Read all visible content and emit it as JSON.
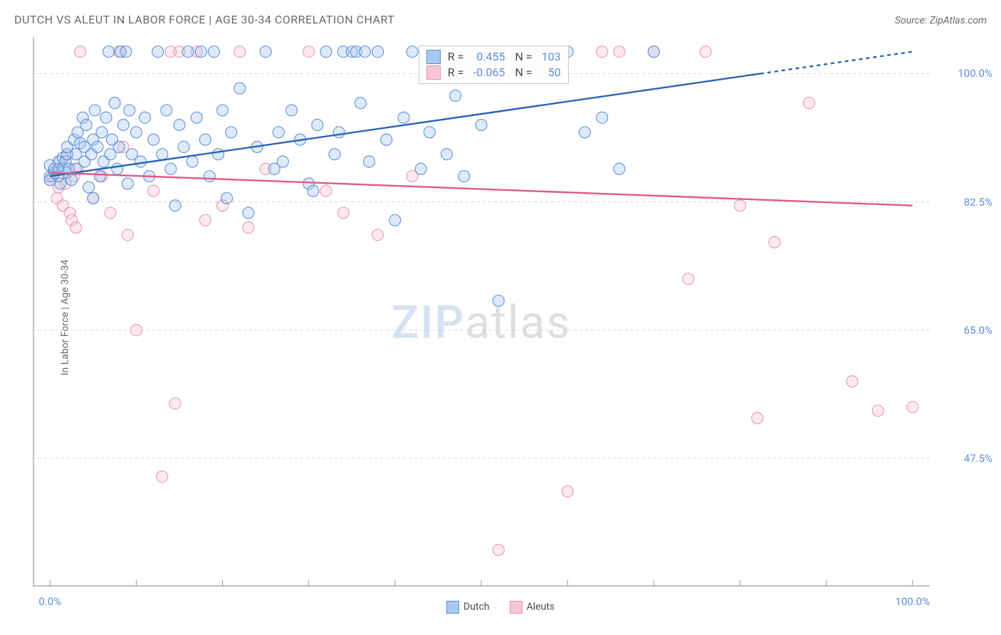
{
  "title": "DUTCH VS ALEUT IN LABOR FORCE | AGE 30-34 CORRELATION CHART",
  "source_label": "Source: ZipAtlas.com",
  "ylabel": "In Labor Force | Age 30-34",
  "watermark": {
    "part1": "ZIP",
    "part2": "atlas"
  },
  "chart": {
    "type": "scatter",
    "xlim": [
      -2,
      102
    ],
    "ylim": [
      30,
      105
    ],
    "xticks": [
      0,
      10,
      20,
      30,
      40,
      50,
      60,
      70,
      80,
      90,
      100
    ],
    "xtick_labels": {
      "0": "0.0%",
      "100": "100.0%"
    },
    "yticks": [
      47.5,
      65.0,
      82.5,
      100.0
    ],
    "ytick_labels": [
      "47.5%",
      "65.0%",
      "82.5%",
      "100.0%"
    ],
    "grid_color": "#d8d8d8",
    "axis_color": "#9a9a9a",
    "background_color": "#ffffff",
    "tick_label_color": "#5b8fd6",
    "marker_radius": 8,
    "marker_opacity": 0.38,
    "line_width": 2.4
  },
  "series": [
    {
      "name": "Dutch",
      "color_fill": "#a9c9ef",
      "color_stroke": "#5b8fd6",
      "line_color": "#2a63b8",
      "stats": {
        "R": "0.455",
        "N": "103"
      },
      "trend": {
        "x1": 0,
        "y1": 86.0,
        "x2": 100,
        "y2": 103.0
      },
      "points": [
        [
          0,
          86
        ],
        [
          0,
          87.5
        ],
        [
          0,
          85.5
        ],
        [
          0.5,
          86.5
        ],
        [
          0.5,
          87
        ],
        [
          1,
          86
        ],
        [
          1,
          87
        ],
        [
          1,
          88
        ],
        [
          1.2,
          85
        ],
        [
          1.5,
          88.5
        ],
        [
          1.5,
          87
        ],
        [
          1.8,
          88
        ],
        [
          2,
          86.5
        ],
        [
          2,
          89
        ],
        [
          2,
          90
        ],
        [
          2.2,
          87
        ],
        [
          2.5,
          85.5
        ],
        [
          2.8,
          91
        ],
        [
          3,
          89
        ],
        [
          3,
          87
        ],
        [
          3.2,
          92
        ],
        [
          3.5,
          90.5
        ],
        [
          3.8,
          94
        ],
        [
          4,
          88
        ],
        [
          4,
          90
        ],
        [
          4.2,
          93
        ],
        [
          4.5,
          84.5
        ],
        [
          4.8,
          89
        ],
        [
          5,
          91
        ],
        [
          5,
          83
        ],
        [
          5.2,
          95
        ],
        [
          5.5,
          90
        ],
        [
          5.8,
          86
        ],
        [
          6,
          92
        ],
        [
          6.2,
          88
        ],
        [
          6.5,
          94
        ],
        [
          6.8,
          103
        ],
        [
          7,
          89
        ],
        [
          7.2,
          91
        ],
        [
          7.5,
          96
        ],
        [
          7.8,
          87
        ],
        [
          8,
          90
        ],
        [
          8.2,
          103
        ],
        [
          8.5,
          93
        ],
        [
          8.8,
          103
        ],
        [
          9,
          85
        ],
        [
          9.2,
          95
        ],
        [
          9.5,
          89
        ],
        [
          10,
          92
        ],
        [
          10.5,
          88
        ],
        [
          11,
          94
        ],
        [
          11.5,
          86
        ],
        [
          12,
          91
        ],
        [
          12.5,
          103
        ],
        [
          13,
          89
        ],
        [
          13.5,
          95
        ],
        [
          14,
          87
        ],
        [
          14.5,
          82
        ],
        [
          15,
          93
        ],
        [
          15.5,
          90
        ],
        [
          16,
          103
        ],
        [
          16.5,
          88
        ],
        [
          17,
          94
        ],
        [
          17.5,
          103
        ],
        [
          18,
          91
        ],
        [
          18.5,
          86
        ],
        [
          19,
          103
        ],
        [
          19.5,
          89
        ],
        [
          20,
          95
        ],
        [
          20.5,
          83
        ],
        [
          21,
          92
        ],
        [
          22,
          98
        ],
        [
          23,
          81
        ],
        [
          24,
          90
        ],
        [
          25,
          103
        ],
        [
          26,
          87
        ],
        [
          26.5,
          92
        ],
        [
          27,
          88
        ],
        [
          28,
          95
        ],
        [
          29,
          91
        ],
        [
          30,
          85
        ],
        [
          30.5,
          84
        ],
        [
          31,
          93
        ],
        [
          32,
          103
        ],
        [
          33,
          89
        ],
        [
          33.5,
          92
        ],
        [
          34,
          103
        ],
        [
          35,
          103
        ],
        [
          35.5,
          103
        ],
        [
          36,
          96
        ],
        [
          36.5,
          103
        ],
        [
          37,
          88
        ],
        [
          38,
          103
        ],
        [
          39,
          91
        ],
        [
          40,
          80
        ],
        [
          41,
          94
        ],
        [
          42,
          103
        ],
        [
          43,
          87
        ],
        [
          44,
          92
        ],
        [
          45,
          103
        ],
        [
          46,
          89
        ],
        [
          47,
          97
        ],
        [
          48,
          86
        ],
        [
          50,
          93
        ],
        [
          52,
          69
        ],
        [
          55,
          103
        ],
        [
          58,
          103
        ],
        [
          60,
          103
        ],
        [
          62,
          92
        ],
        [
          64,
          94
        ],
        [
          66,
          87
        ],
        [
          70,
          103
        ]
      ]
    },
    {
      "name": "Aleuts",
      "color_fill": "#f6c7d4",
      "color_stroke": "#e796ad",
      "line_color": "#e05a87",
      "stats": {
        "R": "-0.065",
        "N": "50"
      },
      "trend": {
        "x1": 0,
        "y1": 86.5,
        "x2": 100,
        "y2": 82.0
      },
      "points": [
        [
          0,
          85.5
        ],
        [
          0.3,
          86
        ],
        [
          0.5,
          87
        ],
        [
          0.8,
          83
        ],
        [
          1,
          84.5
        ],
        [
          1.2,
          88
        ],
        [
          1.5,
          82
        ],
        [
          1.8,
          85
        ],
        [
          2,
          89
        ],
        [
          2.3,
          81
        ],
        [
          2.5,
          80
        ],
        [
          2.8,
          86
        ],
        [
          3,
          79
        ],
        [
          3.2,
          87
        ],
        [
          3.5,
          103
        ],
        [
          5,
          83
        ],
        [
          6,
          86
        ],
        [
          7,
          81
        ],
        [
          8,
          103
        ],
        [
          8.5,
          90
        ],
        [
          9,
          78
        ],
        [
          10,
          65
        ],
        [
          12,
          84
        ],
        [
          13,
          45
        ],
        [
          14,
          103
        ],
        [
          14.5,
          55
        ],
        [
          15,
          103
        ],
        [
          17,
          103
        ],
        [
          18,
          80
        ],
        [
          20,
          82
        ],
        [
          22,
          103
        ],
        [
          23,
          79
        ],
        [
          25,
          87
        ],
        [
          30,
          103
        ],
        [
          32,
          84
        ],
        [
          34,
          81
        ],
        [
          38,
          78
        ],
        [
          42,
          86
        ],
        [
          52,
          35
        ],
        [
          60,
          43
        ],
        [
          64,
          103
        ],
        [
          66,
          103
        ],
        [
          70,
          103
        ],
        [
          74,
          72
        ],
        [
          76,
          103
        ],
        [
          80,
          82
        ],
        [
          82,
          53
        ],
        [
          84,
          77
        ],
        [
          88,
          96
        ],
        [
          93,
          58
        ],
        [
          96,
          54
        ],
        [
          100,
          54.5
        ]
      ]
    }
  ],
  "legend": {
    "items": [
      {
        "label": "Dutch",
        "fill": "#a9c9ef",
        "stroke": "#5b8fd6"
      },
      {
        "label": "Aleuts",
        "fill": "#f6c7d4",
        "stroke": "#e796ad"
      }
    ]
  },
  "stats_box": {
    "top_pct": 1.5,
    "left_pct": 43
  }
}
